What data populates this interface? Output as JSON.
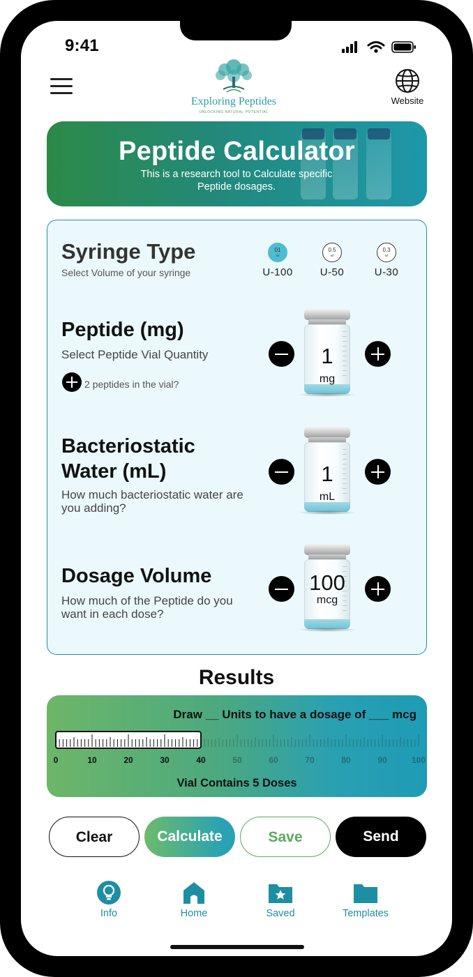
{
  "status_bar": {
    "time": "9:41"
  },
  "header": {
    "logo_title": "Exploring Peptides",
    "logo_tagline": "UNLOCKING NATURAL POTENTIAL",
    "website_label": "Website"
  },
  "banner": {
    "title": "Peptide Calculator",
    "subtitle": "This is a research tool to Calculate specific Peptide dosages."
  },
  "syringe": {
    "title": "Syringe Type",
    "subtitle": "Select Volume of your syringe",
    "options": [
      {
        "volume": "01",
        "unit": "ml",
        "label": "U-100",
        "selected": true
      },
      {
        "volume": "0.5",
        "unit": "ml",
        "label": "U-50",
        "selected": false
      },
      {
        "volume": "0.3",
        "unit": "ml",
        "label": "U-30",
        "selected": false
      }
    ]
  },
  "peptide": {
    "title": "Peptide (mg)",
    "subtitle": "Select Peptide Vial Quantity",
    "value": "1",
    "unit": "mg",
    "second_peptide_label": "2 peptides in the vial?"
  },
  "water": {
    "title_line1": "Bacteriostatic",
    "title_line2": "Water (mL)",
    "subtitle": "How much bacteriostatic water are you adding?",
    "value": "1",
    "unit": "mL"
  },
  "dosage": {
    "title": "Dosage Volume",
    "subtitle": "How much of the Peptide do you want in each dose?",
    "value": "100",
    "unit": "mcg"
  },
  "results": {
    "title": "Results",
    "draw_text": "Draw __ Units to have a dosage of ___ mcg",
    "ruler_labels": [
      "0",
      "10",
      "20",
      "30",
      "40",
      "50",
      "60",
      "70",
      "80",
      "90",
      "100"
    ],
    "ruler_max": 100,
    "ruler_fill": 40,
    "vial_contains": "Vial Contains 5 Doses"
  },
  "actions": {
    "clear": "Clear",
    "calculate": "Calculate",
    "save": "Save",
    "send": "Send"
  },
  "nav": {
    "info": "Info",
    "home": "Home",
    "saved": "Saved",
    "templates": "Templates"
  },
  "colors": {
    "accent_teal": "#1e8ea3",
    "accent_green": "#5aaa62",
    "panel_bg": "#ebf9fc",
    "selected_syringe": "#4fbcd2"
  }
}
